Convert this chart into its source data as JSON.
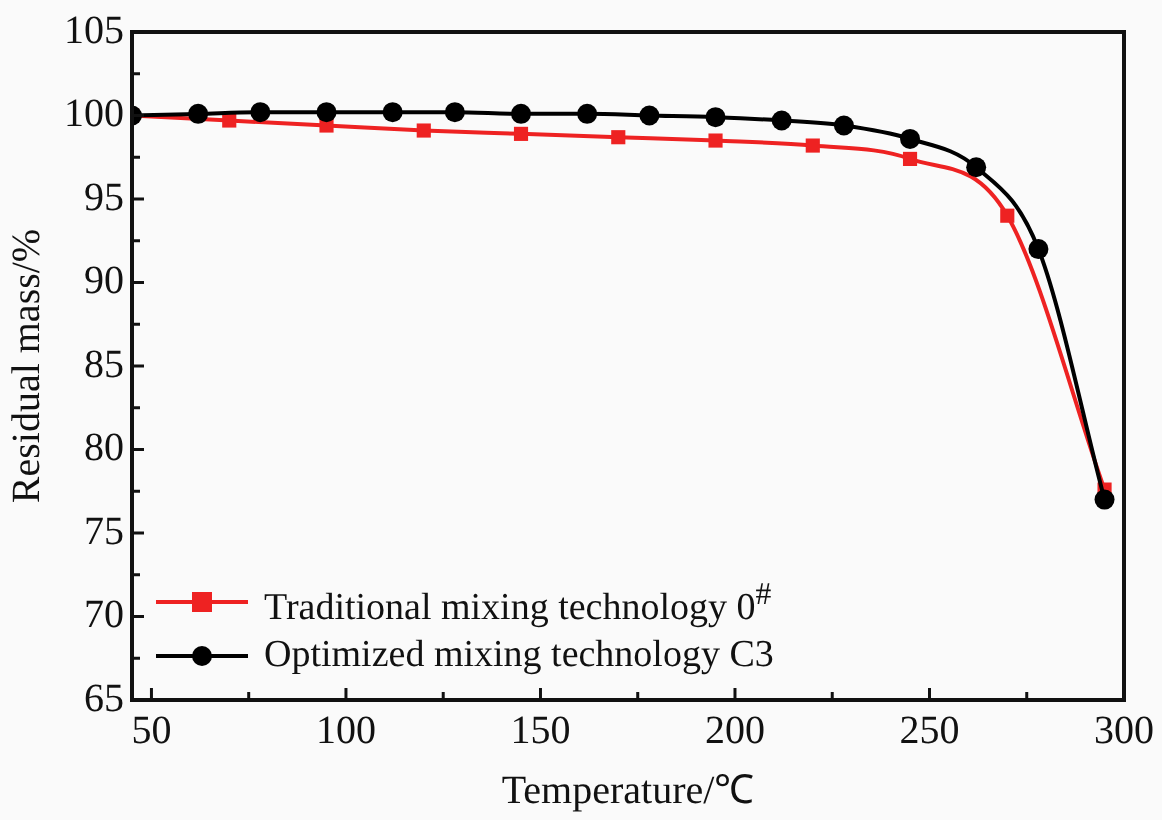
{
  "chart_data": {
    "type": "line",
    "xlabel": "Temperature/℃",
    "ylabel": "Residual mass/%",
    "xlim": [
      45,
      300
    ],
    "ylim": [
      65,
      105
    ],
    "xticks": [
      50,
      {
        "value": 75,
        "label": null
      },
      100,
      {
        "value": 125,
        "label": null
      },
      150,
      {
        "value": 175,
        "label": null
      },
      200,
      {
        "value": 225,
        "label": null
      },
      250,
      {
        "value": 275,
        "label": null
      },
      300
    ],
    "yticks": [
      65,
      {
        "value": 67.5,
        "label": null
      },
      70,
      {
        "value": 72.5,
        "label": null
      },
      75,
      {
        "value": 77.5,
        "label": null
      },
      80,
      {
        "value": 82.5,
        "label": null
      },
      85,
      {
        "value": 87.5,
        "label": null
      },
      90,
      {
        "value": 92.5,
        "label": null
      },
      95,
      {
        "value": 97.5,
        "label": null
      },
      100,
      {
        "value": 102.5,
        "label": null
      },
      105
    ],
    "grid": false,
    "legend": "bottom left",
    "series": [
      {
        "name": "Traditional mixing technology 0$^{#}$",
        "color": "#ee2222",
        "marker": "square",
        "x": [
          45,
          70,
          95,
          120,
          145,
          170,
          195,
          220,
          245,
          270,
          295
        ],
        "values": [
          100,
          99.7,
          99.4,
          99.1,
          98.9,
          98.7,
          98.5,
          98.2,
          97.4,
          94.0,
          77.6
        ]
      },
      {
        "name": "Optimized mixing technology C3",
        "color": "#000000",
        "marker": "circle",
        "x": [
          45,
          62,
          78,
          95,
          112,
          128,
          145,
          162,
          178,
          195,
          212,
          228,
          245,
          262,
          278,
          295
        ],
        "values": [
          100,
          100.1,
          100.2,
          100.2,
          100.2,
          100.2,
          100.1,
          100.1,
          100.0,
          99.9,
          99.7,
          99.4,
          98.6,
          96.9,
          92.0,
          77.0
        ]
      }
    ]
  }
}
